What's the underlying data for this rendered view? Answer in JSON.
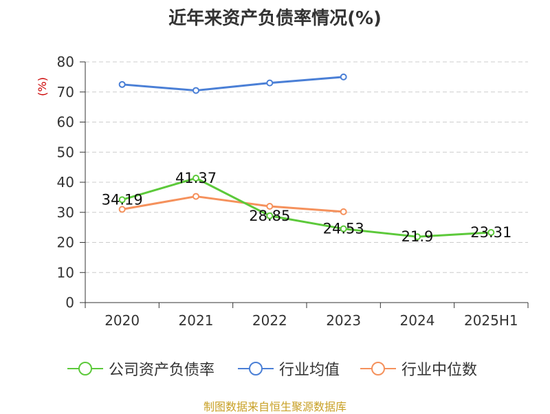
{
  "title": "近年来资产负债率情况(%)",
  "source_note": "制图数据来自恒生聚源数据库",
  "chart_data": {
    "type": "line",
    "title": "近年来资产负债率情况(%)",
    "xlabel": "",
    "ylabel": "(%)",
    "categories": [
      "2020",
      "2021",
      "2022",
      "2023",
      "2024",
      "2025H1"
    ],
    "ylim": [
      0,
      80
    ],
    "yticks": [
      0,
      10,
      20,
      30,
      40,
      50,
      60,
      70,
      80
    ],
    "grid": true,
    "legend_position": "bottom",
    "series": [
      {
        "name": "公司资产负债率",
        "color": "#5cc93a",
        "values": [
          34.19,
          41.37,
          28.85,
          24.53,
          21.9,
          23.31
        ],
        "labels": [
          "34.19",
          "41.37",
          "28.85",
          "24.53",
          "21.9",
          "23.31"
        ]
      },
      {
        "name": "行业均值",
        "color": "#4a7fd6",
        "values": [
          72.5,
          70.5,
          73,
          75,
          null,
          null
        ]
      },
      {
        "name": "行业中位数",
        "color": "#f5915c",
        "values": [
          31,
          35.3,
          32,
          30.2,
          null,
          null
        ]
      }
    ]
  }
}
